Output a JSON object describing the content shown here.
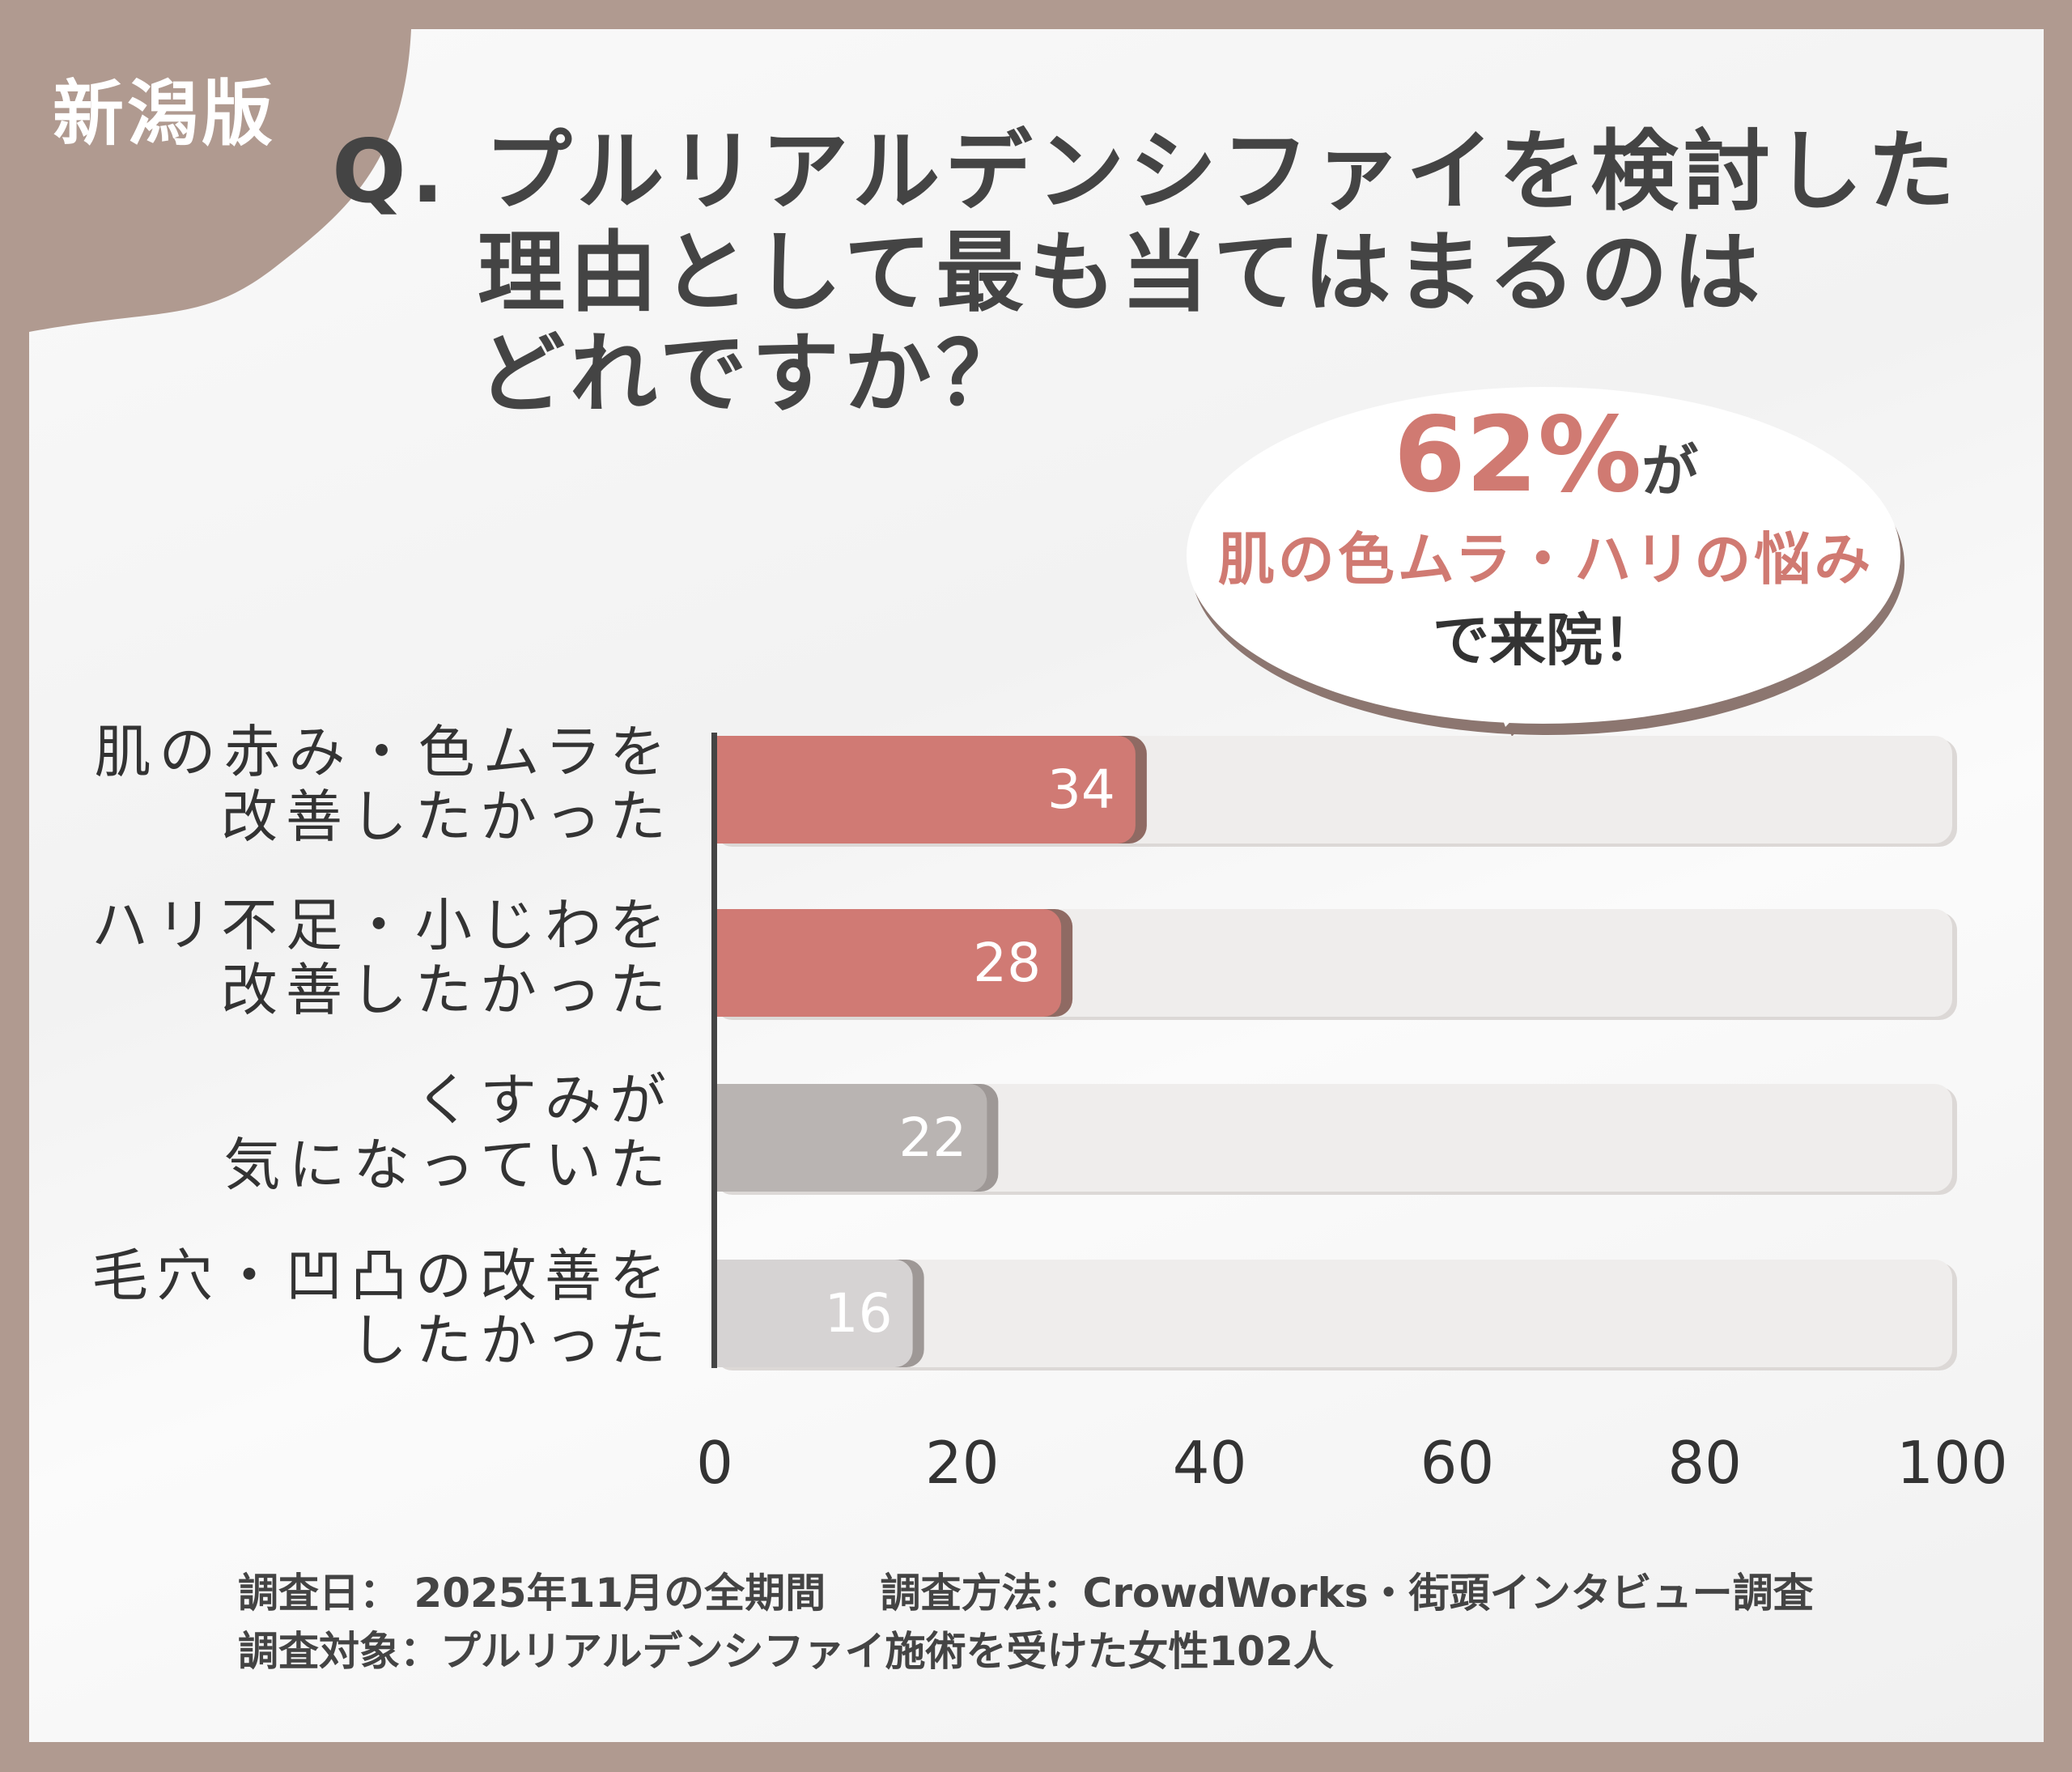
{
  "badge": "新潟版",
  "title": {
    "line1": "Q. プルリアルデンシファイを検討した",
    "line2": "理由として最も当てはまるのは",
    "line3": "どれですか？"
  },
  "callout": {
    "percent": "62%",
    "ga": "が",
    "highlight": "肌の色ムラ・ハリの悩み",
    "suffix": "で来院！"
  },
  "chart_data": {
    "type": "bar",
    "orientation": "horizontal",
    "categories": [
      [
        "肌の赤み・色ムラを",
        "改善したかった"
      ],
      [
        "ハリ不足・小じわを",
        "改善したかった"
      ],
      [
        "くすみが",
        "気になっていた"
      ],
      [
        "毛穴・凹凸の改善を",
        "したかった"
      ]
    ],
    "values": [
      34,
      28,
      22,
      16
    ],
    "value_labels": [
      "34",
      "28",
      "22",
      "16"
    ],
    "colors": [
      "#d07a74",
      "#d07a74",
      "#b9b4b2",
      "#d6d3d3"
    ],
    "xlim": [
      0,
      100
    ],
    "ticks": [
      "0",
      "20",
      "40",
      "60",
      "80",
      "100"
    ],
    "grid": false
  },
  "footer": {
    "line1": "調査日： 2025年11月の全期間　 調査方法：CrowdWorks・街頭インタビュー調査",
    "line2": "調査対象：プルリアルデンシファイ施術を受けた女性102人"
  }
}
